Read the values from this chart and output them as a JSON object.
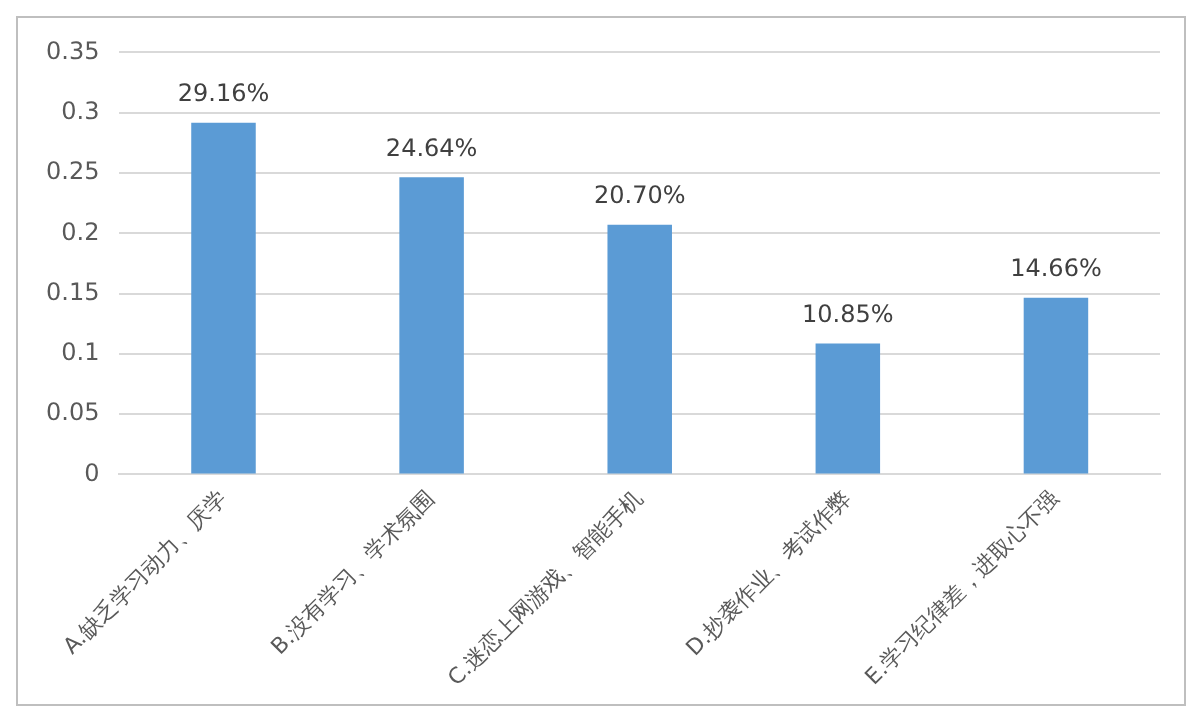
{
  "chart_data": {
    "type": "bar",
    "categories": [
      "A.缺乏学习动力、厌学",
      "B.没有学习、学术氛围",
      "C.迷恋上网游戏、智能手机",
      "D.抄袭作业、考试作弊",
      "E.学习纪律差，进取心不强"
    ],
    "values": [
      0.2916,
      0.2464,
      0.207,
      0.1085,
      0.1466
    ],
    "value_labels": [
      "29.16%",
      "24.64%",
      "20.70%",
      "10.85%",
      "14.66%"
    ],
    "color": "#5b9bd5",
    "ylim": [
      0,
      0.35
    ],
    "yticks": [
      0,
      0.05,
      0.1,
      0.15,
      0.2,
      0.25,
      0.3,
      0.35
    ],
    "grid": "y",
    "legend": false
  }
}
